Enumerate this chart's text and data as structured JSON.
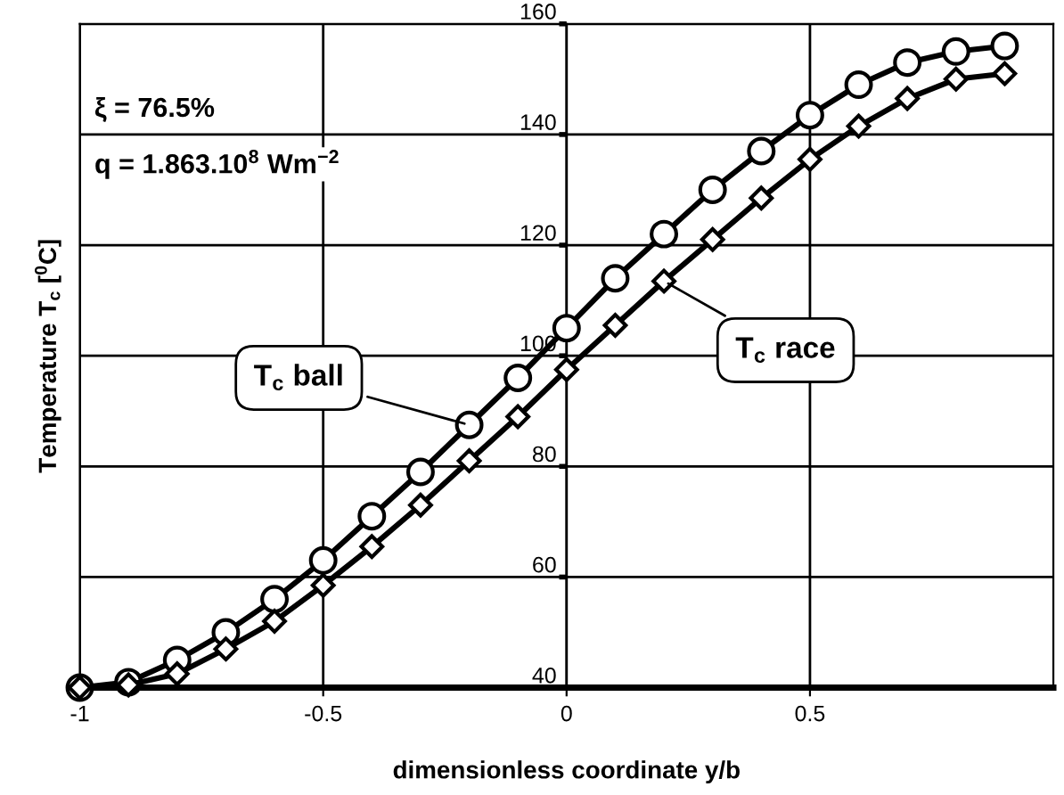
{
  "chart_data": {
    "type": "line",
    "xlabel": "dimensionless coordinate y/b",
    "ylabel": "Temperature T$_{c}$ [$^{0}$C]",
    "x": [
      -1,
      -0.9,
      -0.8,
      -0.7,
      -0.6,
      -0.5,
      -0.4,
      -0.3,
      -0.2,
      -0.1,
      0,
      0.1,
      0.2,
      0.3,
      0.4,
      0.5,
      0.6,
      0.7,
      0.8,
      0.9
    ],
    "series": [
      {
        "name": "T$_{c}$ ball",
        "color": "#000000",
        "marker": "circle",
        "values": [
          40,
          41,
          45,
          50,
          56,
          63,
          71,
          79,
          87.5,
          96,
          105,
          114,
          122,
          130,
          137,
          143.5,
          149,
          153,
          155,
          156
        ]
      },
      {
        "name": "T$_{c}$ race",
        "color": "#000000",
        "marker": "diamond",
        "values": [
          40,
          40.5,
          42.5,
          47,
          52,
          58.5,
          65.5,
          73,
          81,
          89,
          97.5,
          105.5,
          113.5,
          121,
          128.5,
          135.5,
          141.5,
          146.5,
          150,
          151
        ]
      }
    ],
    "xlim": [
      -1,
      1
    ],
    "xticks": [
      -1,
      -0.5,
      0,
      0.5
    ],
    "ylim": [
      40,
      160
    ],
    "yticks": [
      40,
      60,
      80,
      100,
      120,
      140,
      160
    ],
    "grid": true,
    "legend": false,
    "line_style": "solid",
    "annotations": [
      "ξ = 76.5%",
      "q = 1.863.10$^{8}$ Wm$^{−2}$"
    ]
  }
}
